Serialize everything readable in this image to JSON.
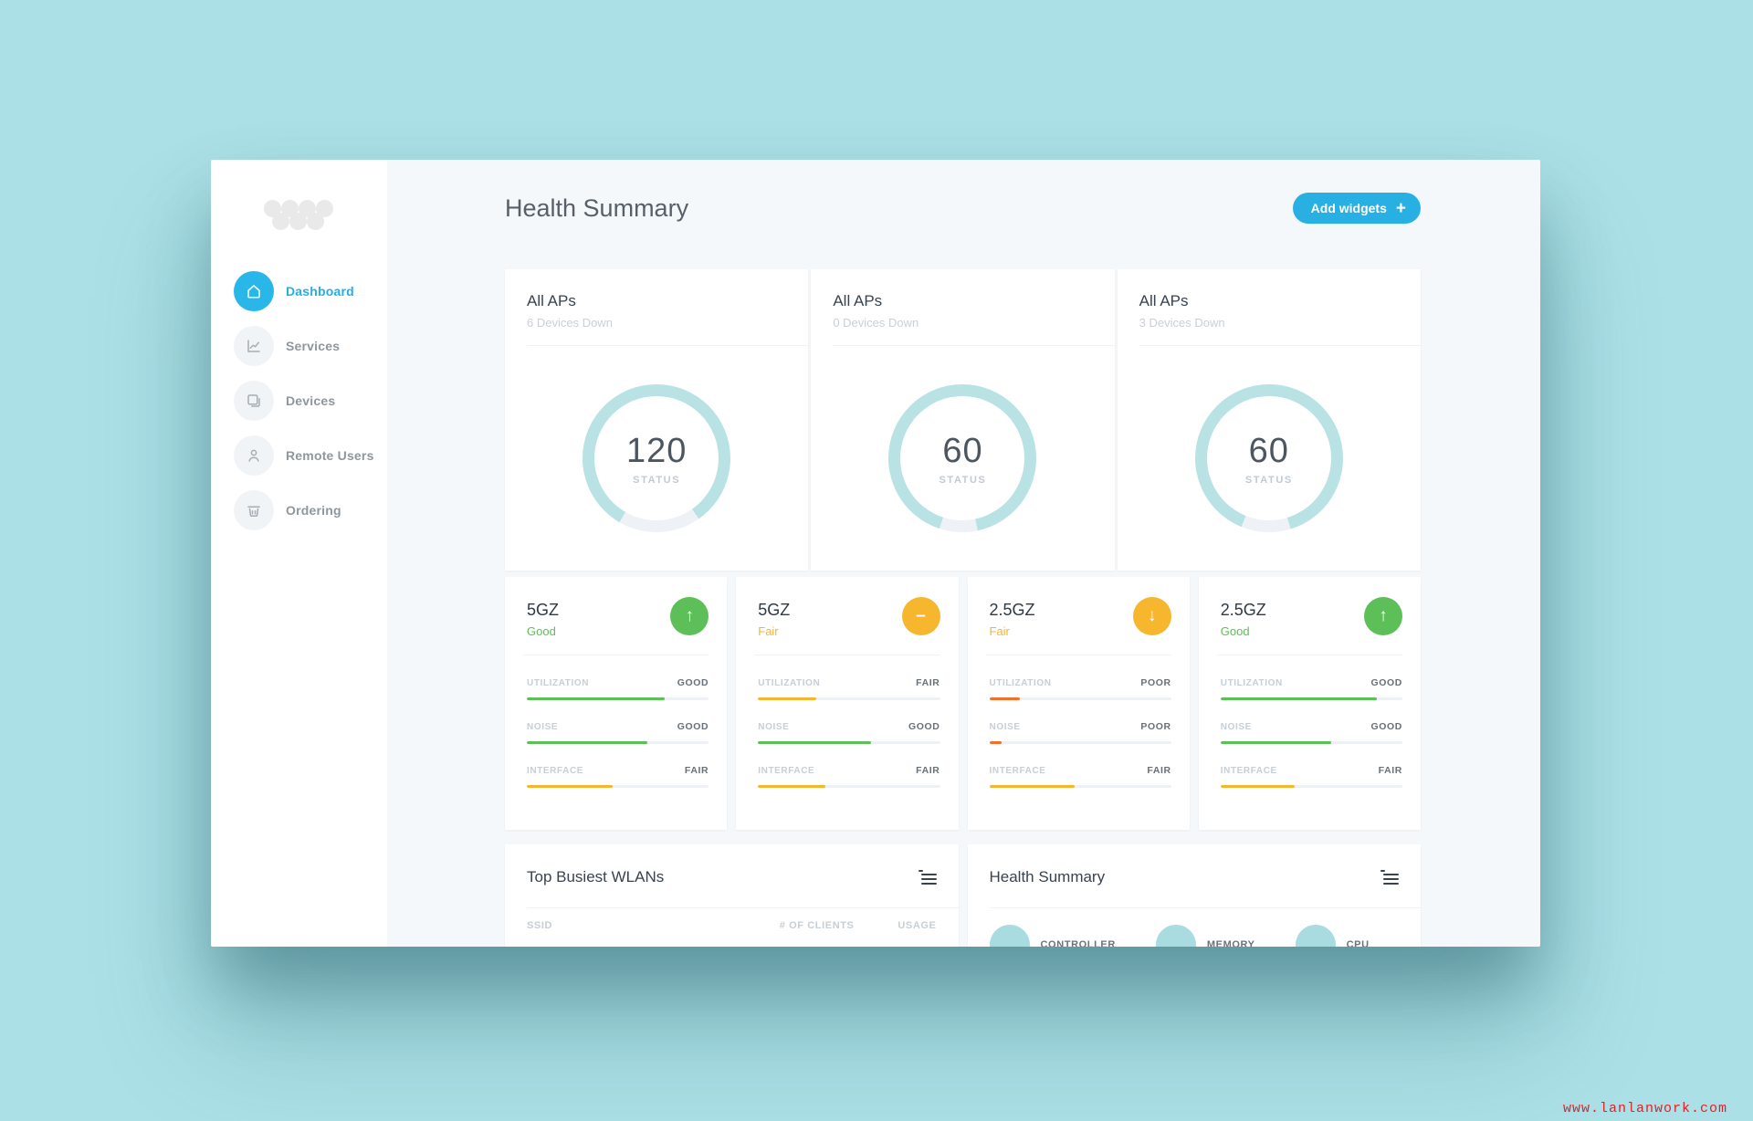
{
  "colors": {
    "accent_blue": "#29b0e3",
    "good": "#5dbf57",
    "fair": "#f6b62e",
    "poor": "#f4702a",
    "ring": "#b9e2e4",
    "track": "#eef1f5"
  },
  "sidebar": {
    "logo_icon": "dots-logo",
    "items": [
      {
        "label": "Dashboard",
        "icon": "home-icon",
        "active": true
      },
      {
        "label": "Services",
        "icon": "chart-icon",
        "active": false
      },
      {
        "label": "Devices",
        "icon": "devices-icon",
        "active": false
      },
      {
        "label": "Remote Users",
        "icon": "user-icon",
        "active": false
      },
      {
        "label": "Ordering",
        "icon": "basket-icon",
        "active": false
      }
    ]
  },
  "header": {
    "title": "Health Summary",
    "add_widgets_label": "Add widgets",
    "add_widgets_plus": "+"
  },
  "ap_cards": [
    {
      "title": "All APs",
      "subtitle": "6 Devices Down",
      "value": "120",
      "value_label": "STATUS",
      "gap_start": 145,
      "gap_end": 210
    },
    {
      "title": "All APs",
      "subtitle": "0 Devices Down",
      "value": "60",
      "value_label": "STATUS",
      "gap_start": 168,
      "gap_end": 198
    },
    {
      "title": "All APs",
      "subtitle": "3 Devices Down",
      "value": "60",
      "value_label": "STATUS",
      "gap_start": 163,
      "gap_end": 202
    }
  ],
  "band_cards": [
    {
      "band": "5GZ",
      "status": "Good",
      "status_color": "good",
      "trend": "up",
      "metrics": [
        {
          "label": "UTILIZATION",
          "value": "GOOD",
          "pct": 76,
          "color": "good"
        },
        {
          "label": "NOISE",
          "value": "GOOD",
          "pct": 66,
          "color": "good"
        },
        {
          "label": "INTERFACE",
          "value": "FAIR",
          "pct": 47,
          "color": "fair"
        }
      ]
    },
    {
      "band": "5GZ",
      "status": "Fair",
      "status_color": "fair",
      "trend": "flat",
      "metrics": [
        {
          "label": "UTILIZATION",
          "value": "FAIR",
          "pct": 32,
          "color": "fair"
        },
        {
          "label": "NOISE",
          "value": "GOOD",
          "pct": 62,
          "color": "good"
        },
        {
          "label": "INTERFACE",
          "value": "FAIR",
          "pct": 37,
          "color": "fair"
        }
      ]
    },
    {
      "band": "2.5GZ",
      "status": "Fair",
      "status_color": "fair",
      "trend": "down",
      "metrics": [
        {
          "label": "UTILIZATION",
          "value": "POOR",
          "pct": 17,
          "color": "poor"
        },
        {
          "label": "NOISE",
          "value": "POOR",
          "pct": 7,
          "color": "poor"
        },
        {
          "label": "INTERFACE",
          "value": "FAIR",
          "pct": 47,
          "color": "fair"
        }
      ]
    },
    {
      "band": "2.5GZ",
      "status": "Good",
      "status_color": "good",
      "trend": "up",
      "metrics": [
        {
          "label": "UTILIZATION",
          "value": "GOOD",
          "pct": 86,
          "color": "good"
        },
        {
          "label": "NOISE",
          "value": "GOOD",
          "pct": 61,
          "color": "good"
        },
        {
          "label": "INTERFACE",
          "value": "FAIR",
          "pct": 41,
          "color": "fair"
        }
      ]
    }
  ],
  "wlans_card": {
    "title": "Top Busiest WLANs",
    "columns": [
      "SSID",
      "# OF CLIENTS",
      "USAGE"
    ]
  },
  "health_card": {
    "title": "Health Summary",
    "items": [
      {
        "label": "CONTROLLER"
      },
      {
        "label": "MEMORY"
      },
      {
        "label": "CPU"
      }
    ]
  },
  "watermark": "www.lanlanwork.com"
}
